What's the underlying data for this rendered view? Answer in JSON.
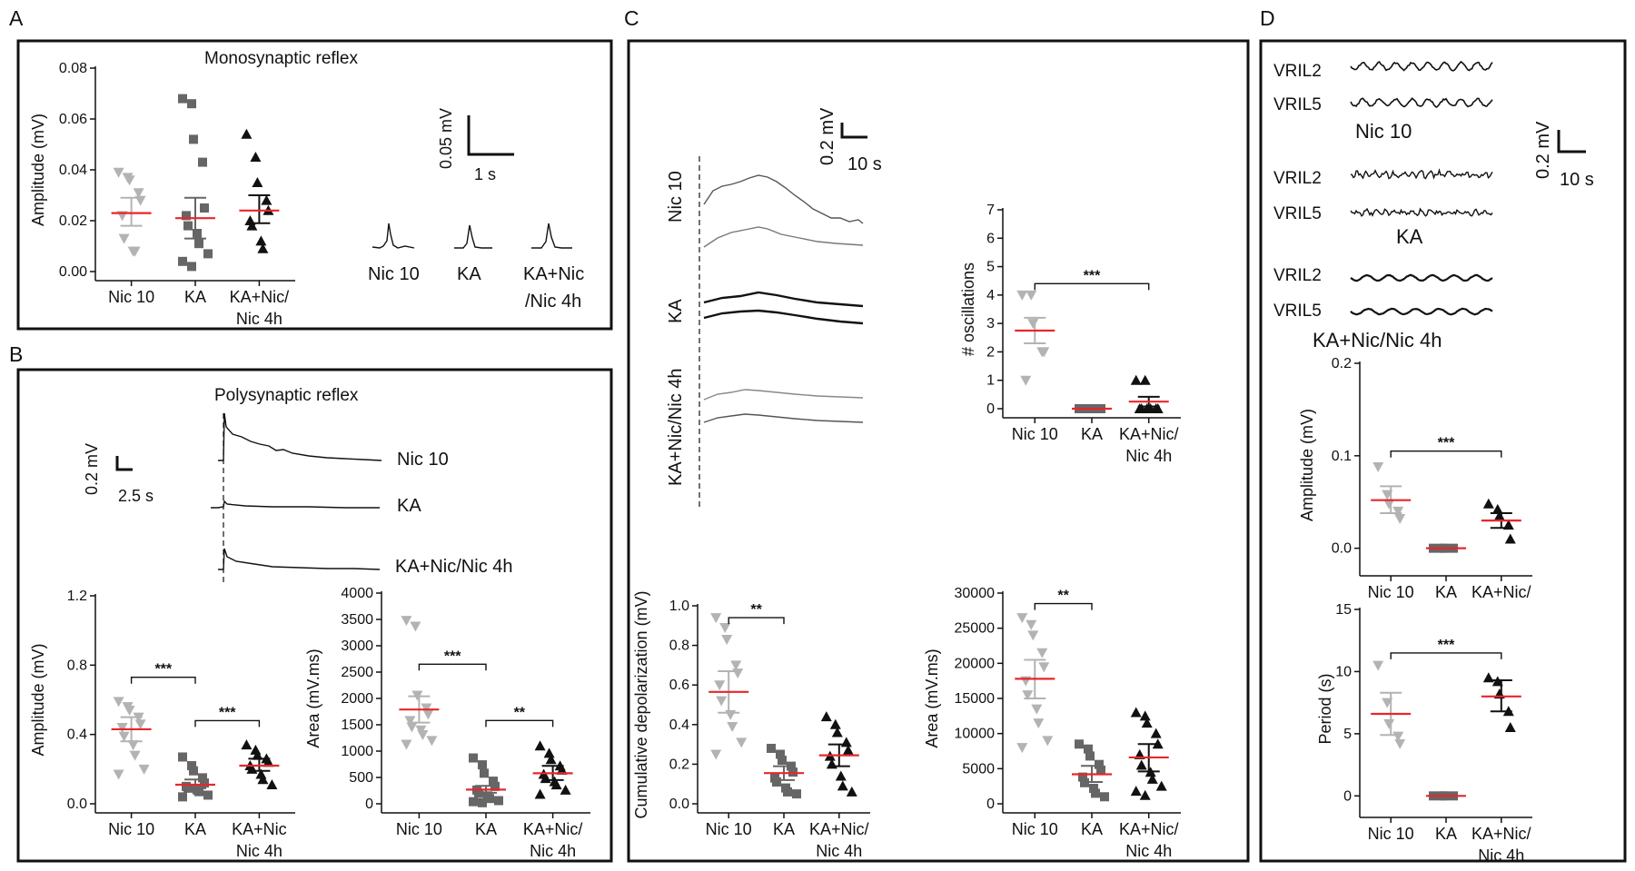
{
  "colors": {
    "red": "#e8262b",
    "gray": "#b3b3b3",
    "darkgray": "#666666",
    "black": "#111111"
  },
  "panels": {
    "A": {
      "letter": "A"
    },
    "B": {
      "letter": "B"
    },
    "C": {
      "letter": "C"
    },
    "D": {
      "letter": "D"
    }
  },
  "A_traces": {
    "title": "Monosynaptic reflex",
    "scalebar_v": "0.05 mV",
    "scalebar_h": "1 s",
    "labels": [
      "Nic 10",
      "KA",
      "KA+Nic",
      "/Nic 4h"
    ]
  },
  "B_traces": {
    "title": "Polysynaptic reflex",
    "scalebar_v": "0.2 mV",
    "scalebar_h": "2.5 s",
    "labels": [
      "Nic 10",
      "KA",
      "KA+Nic/Nic 4h"
    ]
  },
  "C_traces": {
    "scalebar_v": "0.2 mV",
    "scalebar_h": "10 s",
    "labels": [
      "Nic 10",
      "KA",
      "KA+Nic/Nic 4h"
    ]
  },
  "D_traces": {
    "scalebar_v": "0.2 mV",
    "scalebar_h": "10 s",
    "rows": [
      "VRIL2",
      "VRIL5",
      "VRIL2",
      "VRIL5",
      "VRIL2",
      "VRIL5"
    ],
    "groups": [
      "Nic 10",
      "KA",
      "KA+Nic/Nic 4h"
    ]
  },
  "chart_data": [
    {
      "id": "A_amp",
      "type": "scatter",
      "ylabel": "Amplitude (mV)",
      "ylim": [
        0,
        0.08
      ],
      "yticks": [
        "0.00",
        "0.02",
        "0.04",
        "0.06",
        "0.08"
      ],
      "categories": [
        "Nic 10",
        "KA",
        "KA+Nic/|Nic 4h"
      ],
      "series": [
        {
          "name": "Nic 10",
          "mean": 0.023,
          "sem": [
            0.018,
            0.029
          ],
          "points": [
            0.039,
            0.037,
            0.036,
            0.031,
            0.028,
            0.022,
            0.013,
            0.008,
            0.008
          ]
        },
        {
          "name": "KA",
          "mean": 0.021,
          "sem": [
            0.013,
            0.029
          ],
          "points": [
            0.068,
            0.066,
            0.052,
            0.043,
            0.025,
            0.022,
            0.018,
            0.015,
            0.011,
            0.007,
            0.004,
            0.002
          ]
        },
        {
          "name": "KA+Nic/Nic 4h",
          "mean": 0.024,
          "sem": [
            0.019,
            0.03
          ],
          "points": [
            0.054,
            0.045,
            0.035,
            0.028,
            0.024,
            0.02,
            0.018,
            0.012,
            0.009
          ]
        }
      ],
      "sig": []
    },
    {
      "id": "B_amp",
      "type": "scatter",
      "ylabel": "Amplitude (mV)",
      "ylim": [
        0,
        1.2
      ],
      "yticks": [
        "0.0",
        "0.4",
        "0.8",
        "1.2"
      ],
      "categories": [
        "Nic 10",
        "KA",
        "KA+Nic|Nic 4h"
      ],
      "series": [
        {
          "name": "Nic 10",
          "mean": 0.43,
          "sem": [
            0.36,
            0.5
          ],
          "points": [
            0.59,
            0.56,
            0.54,
            0.5,
            0.46,
            0.44,
            0.39,
            0.34,
            0.28,
            0.2,
            0.17
          ]
        },
        {
          "name": "KA",
          "mean": 0.11,
          "sem": [
            0.09,
            0.14
          ],
          "points": [
            0.27,
            0.22,
            0.19,
            0.15,
            0.12,
            0.1,
            0.09,
            0.08,
            0.07,
            0.05,
            0.04
          ]
        },
        {
          "name": "KA+Nic/Nic 4h",
          "mean": 0.22,
          "sem": [
            0.19,
            0.26
          ],
          "points": [
            0.34,
            0.31,
            0.28,
            0.26,
            0.24,
            0.22,
            0.2,
            0.17,
            0.14,
            0.11
          ]
        }
      ],
      "sig": [
        {
          "a": 0,
          "b": 1,
          "y": 0.73,
          "label": "***"
        },
        {
          "a": 1,
          "b": 2,
          "y": 0.48,
          "label": "***"
        }
      ]
    },
    {
      "id": "B_area",
      "type": "scatter",
      "ylabel": "Area (mV.ms)",
      "ylim": [
        0,
        4000
      ],
      "yticks": [
        "0",
        "500",
        "1000",
        "1500",
        "2000",
        "2500",
        "3000",
        "3500",
        "4000"
      ],
      "categories": [
        "Nic 10",
        "KA",
        "KA+Nic/|Nic 4h"
      ],
      "series": [
        {
          "name": "Nic 10",
          "mean": 1790,
          "sem": [
            1540,
            2040
          ],
          "points": [
            3480,
            3370,
            2060,
            1820,
            1700,
            1580,
            1460,
            1400,
            1310,
            1200,
            1130
          ]
        },
        {
          "name": "KA",
          "mean": 270,
          "sem": [
            210,
            340
          ],
          "points": [
            870,
            740,
            580,
            430,
            330,
            260,
            200,
            150,
            100,
            60,
            40,
            20
          ]
        },
        {
          "name": "KA+Nic/Nic 4h",
          "mean": 580,
          "sem": [
            450,
            720
          ],
          "points": [
            1100,
            960,
            840,
            720,
            640,
            560,
            480,
            420,
            360,
            260,
            180
          ]
        }
      ],
      "sig": [
        {
          "a": 0,
          "b": 1,
          "y": 2650,
          "label": "***"
        },
        {
          "a": 1,
          "b": 2,
          "y": 1580,
          "label": "**"
        }
      ]
    },
    {
      "id": "C_osc",
      "type": "scatter",
      "ylabel": "# oscillations",
      "ylim": [
        0,
        7
      ],
      "yticks": [
        "0",
        "1",
        "2",
        "3",
        "4",
        "5",
        "6",
        "7"
      ],
      "categories": [
        "Nic 10",
        "KA",
        "KA+Nic/|Nic 4h"
      ],
      "series": [
        {
          "name": "Nic 10",
          "mean": 2.75,
          "sem": [
            2.3,
            3.2
          ],
          "points": [
            4,
            4,
            3,
            2,
            2,
            1
          ]
        },
        {
          "name": "KA",
          "mean": 0,
          "sem": [
            0,
            0
          ],
          "points": [
            0,
            0,
            0,
            0,
            0,
            0
          ]
        },
        {
          "name": "KA+Nic/Nic 4h",
          "mean": 0.25,
          "sem": [
            0.08,
            0.42
          ],
          "points": [
            1,
            1,
            0,
            0,
            0,
            0,
            0,
            0
          ]
        }
      ],
      "sig": [
        {
          "a": 0,
          "b": 2,
          "y": 4.4,
          "label": "***"
        }
      ]
    },
    {
      "id": "C_cum",
      "type": "scatter",
      "ylabel": "Cumulative depolarization (mV)",
      "ylim": [
        0,
        1.0
      ],
      "yticks": [
        "0.0",
        "0.2",
        "0.4",
        "0.6",
        "0.8",
        "1.0"
      ],
      "categories": [
        "Nic 10",
        "KA",
        "KA+Nic/|Nic 4h"
      ],
      "series": [
        {
          "name": "Nic 10",
          "mean": 0.565,
          "sem": [
            0.46,
            0.67
          ],
          "points": [
            0.94,
            0.89,
            0.83,
            0.7,
            0.66,
            0.6,
            0.52,
            0.45,
            0.39,
            0.31,
            0.25
          ]
        },
        {
          "name": "KA",
          "mean": 0.155,
          "sem": [
            0.12,
            0.19
          ],
          "points": [
            0.28,
            0.25,
            0.22,
            0.19,
            0.16,
            0.13,
            0.11,
            0.08,
            0.06,
            0.05
          ]
        },
        {
          "name": "KA+Nic/Nic 4h",
          "mean": 0.245,
          "sem": [
            0.19,
            0.3
          ],
          "points": [
            0.44,
            0.4,
            0.36,
            0.31,
            0.27,
            0.24,
            0.2,
            0.14,
            0.09,
            0.06
          ]
        }
      ],
      "sig": [
        {
          "a": 0,
          "b": 1,
          "y": 0.94,
          "label": "**"
        }
      ]
    },
    {
      "id": "C_area",
      "type": "scatter",
      "ylabel": "Area (mV.ms)",
      "ylim": [
        0,
        30000
      ],
      "yticks": [
        "0",
        "5000",
        "10000",
        "15000",
        "20000",
        "25000",
        "30000"
      ],
      "categories": [
        "Nic 10",
        "KA",
        "KA+Nic/|Nic 4h"
      ],
      "series": [
        {
          "name": "Nic 10",
          "mean": 17800,
          "sem": [
            15000,
            20500
          ],
          "points": [
            26500,
            25500,
            24000,
            21500,
            19500,
            17500,
            15500,
            13500,
            11500,
            9000,
            8000
          ]
        },
        {
          "name": "KA",
          "mean": 4200,
          "sem": [
            3100,
            5400
          ],
          "points": [
            8500,
            7800,
            6800,
            5600,
            4800,
            3800,
            3000,
            2200,
            1500,
            1000
          ]
        },
        {
          "name": "KA+Nic/Nic 4h",
          "mean": 6600,
          "sem": [
            4600,
            8500
          ],
          "points": [
            13000,
            12500,
            11500,
            10000,
            8500,
            7000,
            5500,
            4500,
            3500,
            2500,
            1800,
            1200
          ]
        }
      ],
      "sig": [
        {
          "a": 0,
          "b": 1,
          "y": 28500,
          "label": "**"
        }
      ]
    },
    {
      "id": "D_amp",
      "type": "scatter",
      "ylabel": "Amplitude (mV)",
      "ylim": [
        -0.02,
        0.2
      ],
      "yticks": [
        "0.0",
        "0.1",
        "0.2"
      ],
      "ytickvals": [
        0,
        0.1,
        0.2
      ],
      "categories": [
        "Nic 10",
        "KA",
        "KA+Nic/"
      ],
      "series": [
        {
          "name": "Nic 10",
          "mean": 0.052,
          "sem": [
            0.038,
            0.067
          ],
          "points": [
            0.088,
            0.058,
            0.048,
            0.04,
            0.032
          ]
        },
        {
          "name": "KA",
          "mean": 0.0,
          "sem": [
            0,
            0
          ],
          "points": [
            0,
            0,
            0,
            0
          ]
        },
        {
          "name": "KA+Nic/Nic 4h",
          "mean": 0.03,
          "sem": [
            0.022,
            0.038
          ],
          "points": [
            0.048,
            0.042,
            0.035,
            0.025,
            0.01
          ]
        }
      ],
      "sig": [
        {
          "a": 0,
          "b": 2,
          "y": 0.105,
          "label": "***"
        }
      ]
    },
    {
      "id": "D_period",
      "type": "scatter",
      "ylabel": "Period (s)",
      "ylim": [
        -1,
        15
      ],
      "yticks": [
        "0",
        "5",
        "10",
        "15"
      ],
      "ytickvals": [
        0,
        5,
        10,
        15
      ],
      "categories": [
        "Nic 10",
        "KA",
        "KA+Nic/|Nic 4h"
      ],
      "series": [
        {
          "name": "Nic 10",
          "mean": 6.6,
          "sem": [
            4.9,
            8.3
          ],
          "points": [
            10.5,
            7.5,
            5.8,
            4.8,
            4.2
          ]
        },
        {
          "name": "KA",
          "mean": 0,
          "sem": [
            0,
            0
          ],
          "points": [
            0,
            0,
            0,
            0
          ]
        },
        {
          "name": "KA+Nic/Nic 4h",
          "mean": 8.0,
          "sem": [
            6.8,
            9.3
          ],
          "points": [
            9.5,
            9.2,
            8.2,
            6.8,
            5.5
          ]
        }
      ],
      "sig": [
        {
          "a": 0,
          "b": 2,
          "y": 11.5,
          "label": "***"
        }
      ]
    }
  ]
}
